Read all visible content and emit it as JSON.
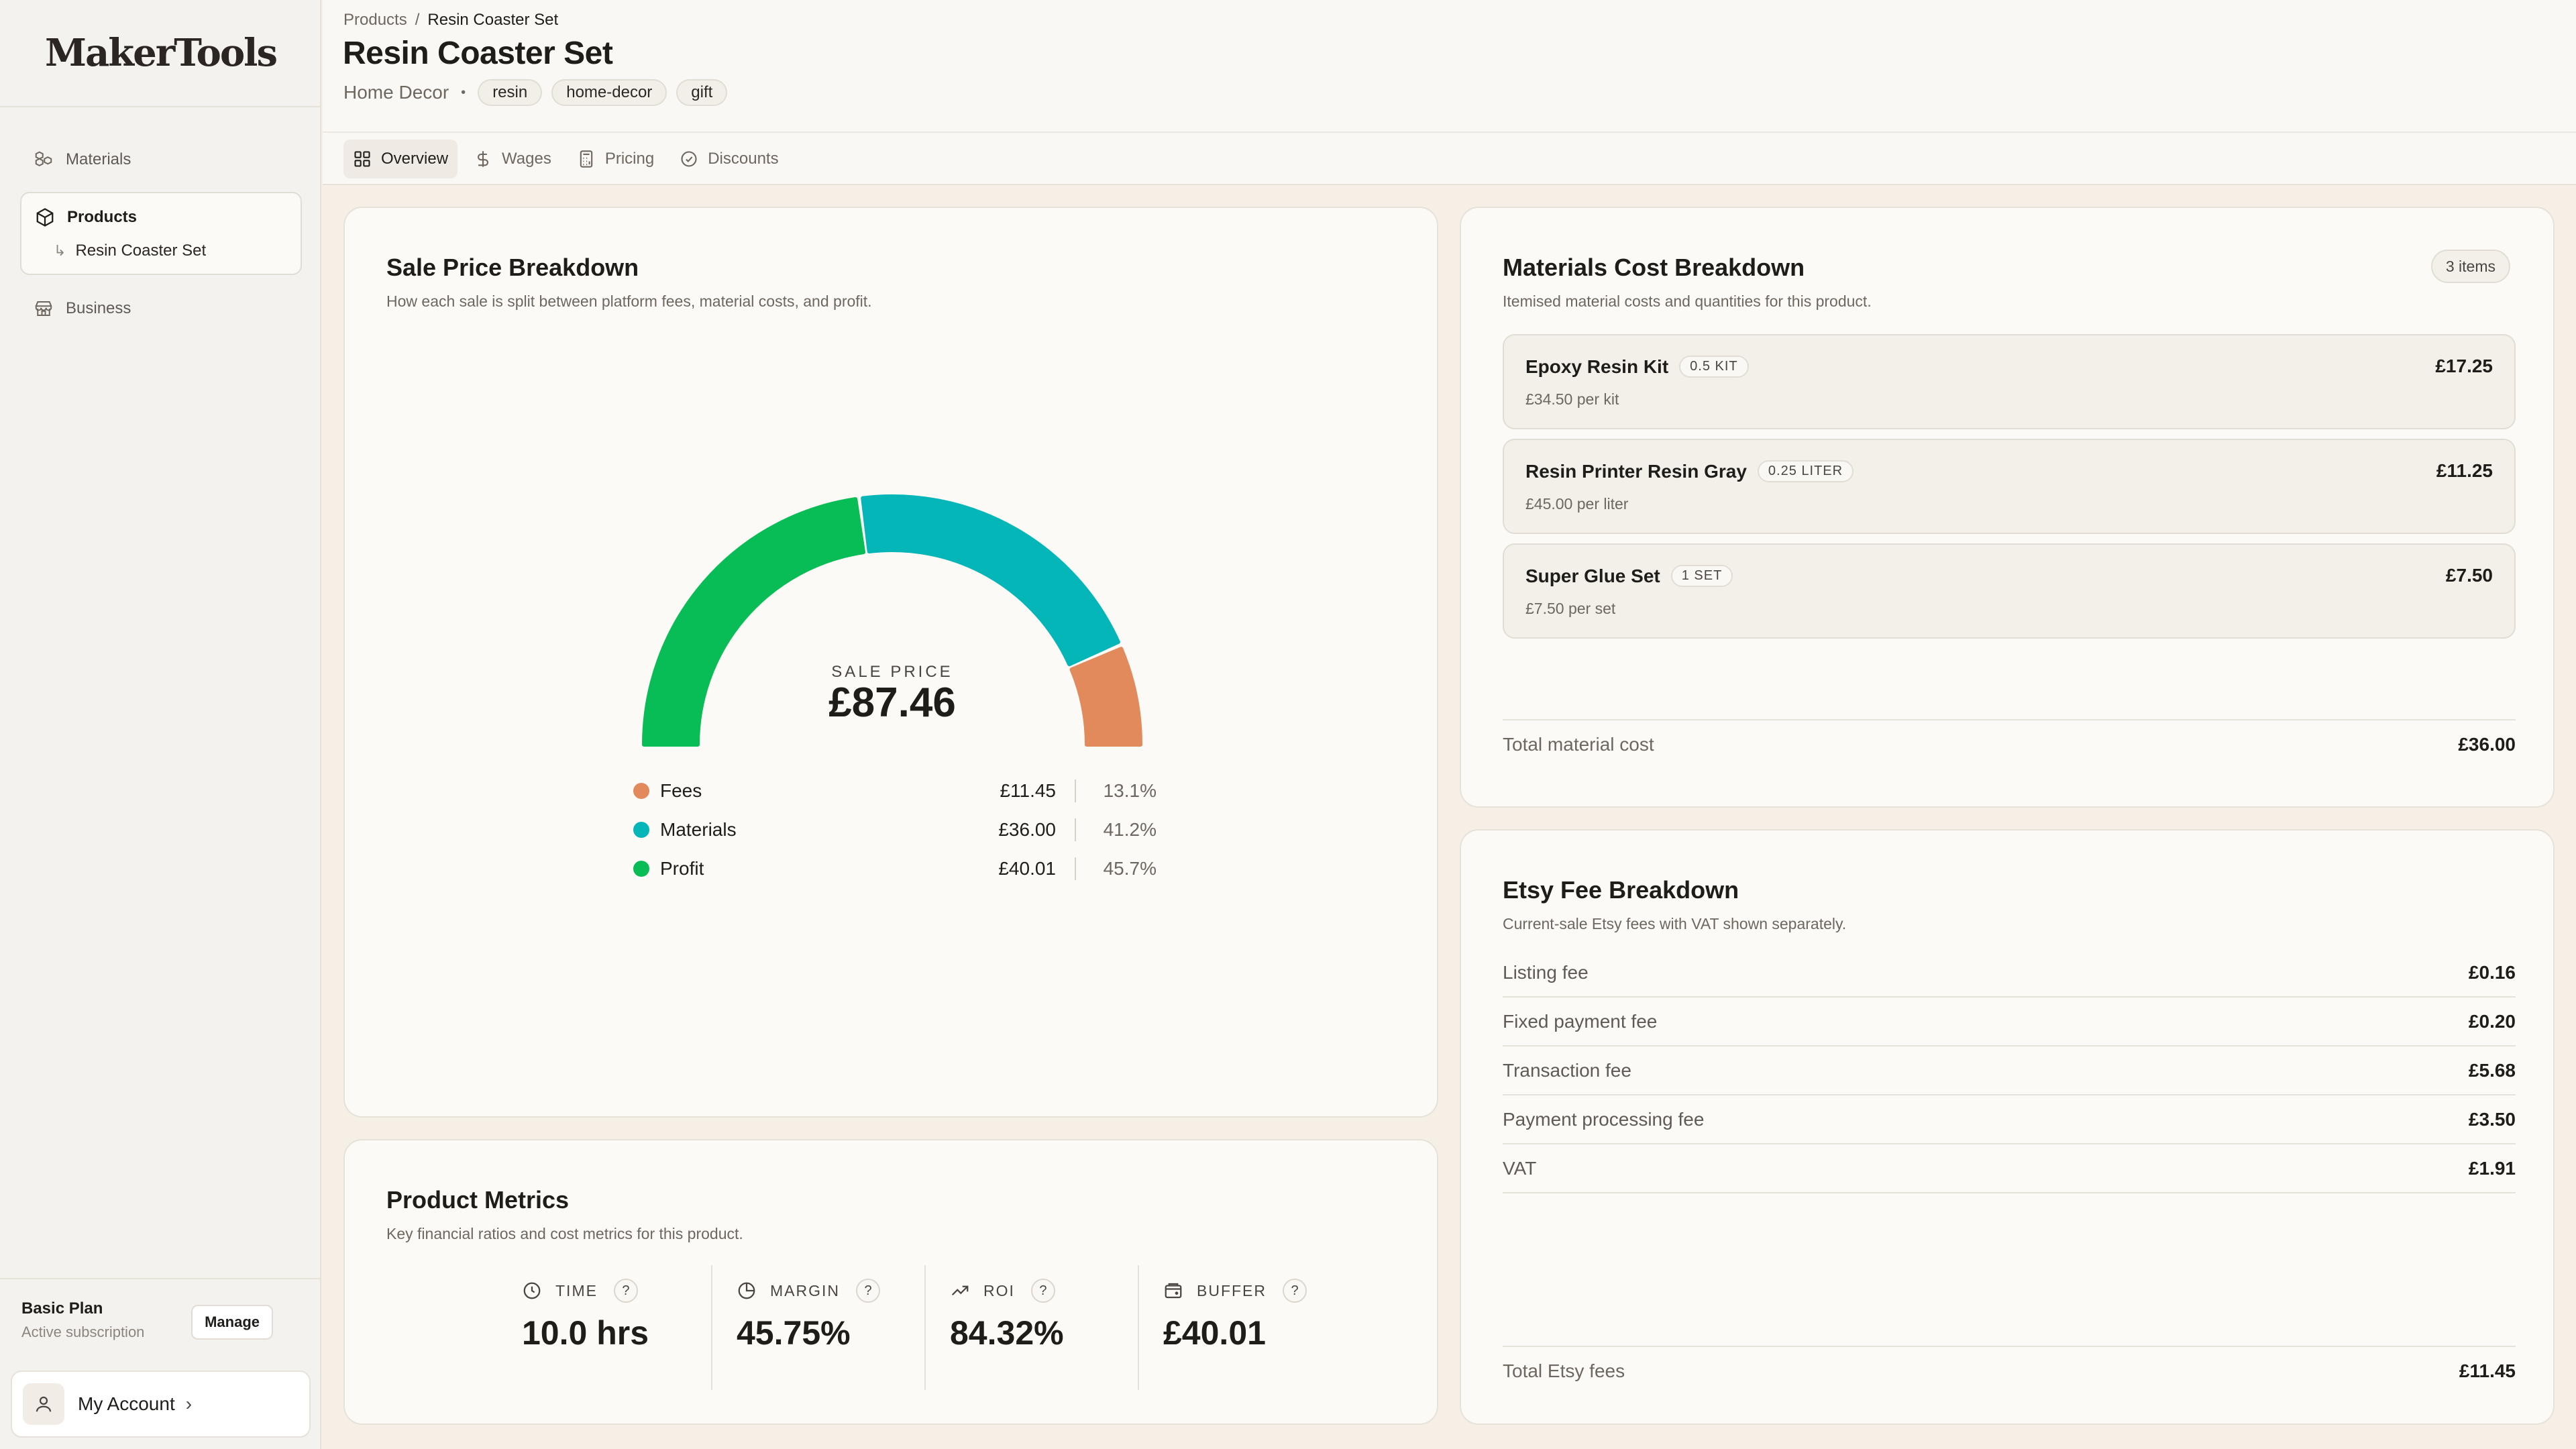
{
  "app": {
    "logo": "MakerTools"
  },
  "sidebar": {
    "items": [
      {
        "label": "Materials",
        "icon": "boxes-icon"
      },
      {
        "label": "Products",
        "icon": "package-icon",
        "sub": "Resin Coaster Set"
      },
      {
        "label": "Business",
        "icon": "store-icon"
      }
    ],
    "plan": {
      "title": "Basic Plan",
      "status": "Active subscription",
      "manage_label": "Manage"
    },
    "account_label": "My Account"
  },
  "header": {
    "breadcrumb": {
      "root": "Products",
      "current": "Resin Coaster Set"
    },
    "title": "Resin Coaster Set",
    "category": "Home Decor",
    "tags": [
      "resin",
      "home-decor",
      "gift"
    ],
    "tabs": [
      {
        "label": "Overview",
        "icon": "grid-icon",
        "active": true
      },
      {
        "label": "Wages",
        "icon": "dollar-icon",
        "active": false
      },
      {
        "label": "Pricing",
        "icon": "calculator-icon",
        "active": false
      },
      {
        "label": "Discounts",
        "icon": "badge-percent-icon",
        "active": false
      }
    ]
  },
  "sale_breakdown": {
    "title": "Sale Price Breakdown",
    "subtitle": "How each sale is split between platform fees, material costs, and profit.",
    "center_label": "SALE PRICE",
    "center_value": "£87.46",
    "legend": [
      {
        "name": "Fees",
        "amount": "£11.45",
        "percent": "13.1%",
        "color": "#e28a5c"
      },
      {
        "name": "Materials",
        "amount": "£36.00",
        "percent": "41.2%",
        "color": "#05b6b8"
      },
      {
        "name": "Profit",
        "amount": "£40.01",
        "percent": "45.7%",
        "color": "#08bd55"
      }
    ]
  },
  "chart_data": {
    "type": "pie",
    "style": "half-donut gauge",
    "title": "Sale Price Breakdown",
    "categories": [
      "Profit",
      "Materials",
      "Fees"
    ],
    "values": [
      40.01,
      36.0,
      11.45
    ],
    "percent": [
      45.7,
      41.2,
      13.1
    ],
    "colors": [
      "#08bd55",
      "#05b6b8",
      "#e28a5c"
    ],
    "total": 87.46
  },
  "materials": {
    "title": "Materials Cost Breakdown",
    "subtitle": "Itemised material costs and quantities for this product.",
    "count_label": "3 items",
    "items": [
      {
        "name": "Epoxy Resin Kit",
        "qty": "0.5 KIT",
        "unit_price": "£34.50 per kit",
        "cost": "£17.25"
      },
      {
        "name": "Resin Printer Resin Gray",
        "qty": "0.25 LITER",
        "unit_price": "£45.00 per liter",
        "cost": "£11.25"
      },
      {
        "name": "Super Glue Set",
        "qty": "1 SET",
        "unit_price": "£7.50 per set",
        "cost": "£7.50"
      }
    ],
    "total_label": "Total material cost",
    "total_value": "£36.00"
  },
  "fees": {
    "title": "Etsy Fee Breakdown",
    "subtitle": "Current-sale Etsy fees with VAT shown separately.",
    "rows": [
      {
        "label": "Listing fee",
        "value": "£0.16"
      },
      {
        "label": "Fixed payment fee",
        "value": "£0.20"
      },
      {
        "label": "Transaction fee",
        "value": "£5.68"
      },
      {
        "label": "Payment processing fee",
        "value": "£3.50"
      },
      {
        "label": "VAT",
        "value": "£1.91"
      }
    ],
    "total_label": "Total Etsy fees",
    "total_value": "£11.45"
  },
  "metrics": {
    "title": "Product Metrics",
    "subtitle": "Key financial ratios and cost metrics for this product.",
    "items": [
      {
        "label": "TIME",
        "value": "10.0 hrs",
        "icon": "clock-icon"
      },
      {
        "label": "MARGIN",
        "value": "45.75%",
        "icon": "pie-icon"
      },
      {
        "label": "ROI",
        "value": "84.32%",
        "icon": "trending-up-icon"
      },
      {
        "label": "BUFFER",
        "value": "£40.01",
        "icon": "wallet-icon"
      }
    ],
    "help_label": "?"
  }
}
